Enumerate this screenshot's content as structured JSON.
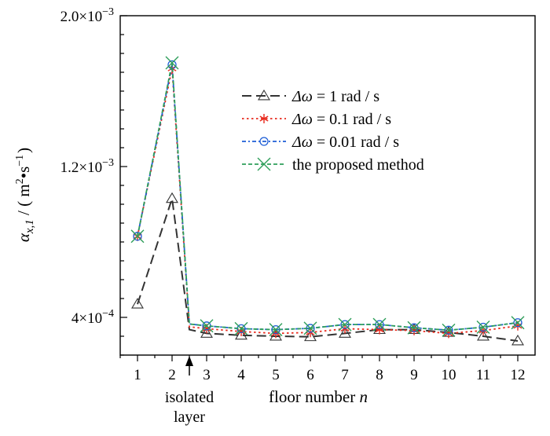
{
  "chart_data": {
    "type": "line",
    "x": [
      1,
      2,
      3,
      4,
      5,
      6,
      7,
      8,
      9,
      10,
      11,
      12
    ],
    "xlabel_parts": {
      "text": "floor number ",
      "var": "n"
    },
    "ylabel_parts": {
      "var": "α",
      "sub": "x,1",
      "rest": " / ( m",
      "sup1": "2",
      "dot": "•s",
      "sup2": "−1",
      "close": ")"
    },
    "xlim": [
      0.5,
      12.5
    ],
    "ylim": [
      0.0002,
      0.002
    ],
    "y_major_ticks": [
      {
        "value": 0.0004,
        "mant": "4×10",
        "exp": "−4"
      },
      {
        "value": 0.0012,
        "mant": "1.2×10",
        "exp": "−3"
      },
      {
        "value": 0.002,
        "mant": "2.0×10",
        "exp": "−3"
      }
    ],
    "y_minor_step": 0.0001,
    "x_tick_labels": [
      "1",
      "2",
      "3",
      "4",
      "5",
      "6",
      "7",
      "8",
      "9",
      "10",
      "11",
      "12"
    ],
    "annotation": {
      "lines": [
        "isolated",
        "layer"
      ],
      "x": 2.5
    },
    "legend": {
      "position": "top-right"
    },
    "series": [
      {
        "name_parts": {
          "var": "Δω",
          "rest": " = 1 rad / s"
        },
        "marker": "triangle",
        "color": "#333333",
        "dash": "dashed",
        "points": [
          [
            1,
            0.00047
          ],
          [
            2,
            0.00103
          ],
          [
            2.5,
            0.000335
          ],
          [
            3,
            0.000315
          ],
          [
            4,
            0.000305
          ],
          [
            5,
            0.0003
          ],
          [
            6,
            0.000297
          ],
          [
            7,
            0.000315
          ],
          [
            8,
            0.000335
          ],
          [
            9,
            0.000335
          ],
          [
            10,
            0.00032
          ],
          [
            11,
            0.0003
          ],
          [
            12,
            0.000275
          ]
        ]
      },
      {
        "name_parts": {
          "var": "Δω",
          "rest": " = 0.1 rad / s"
        },
        "marker": "asterisk",
        "color": "#e8291c",
        "dash": "dotted",
        "points": [
          [
            1,
            0.00083
          ],
          [
            2,
            0.00172
          ],
          [
            2.5,
            0.00035
          ],
          [
            3,
            0.00034
          ],
          [
            4,
            0.000325
          ],
          [
            5,
            0.000315
          ],
          [
            6,
            0.00032
          ],
          [
            7,
            0.00034
          ],
          [
            8,
            0.000335
          ],
          [
            9,
            0.00033
          ],
          [
            10,
            0.000315
          ],
          [
            11,
            0.00033
          ],
          [
            12,
            0.000355
          ]
        ]
      },
      {
        "name_parts": {
          "var": "Δω",
          "rest": " = 0.01 rad / s"
        },
        "marker": "circle",
        "color": "#1f5fd6",
        "dash": "dashdot",
        "points": [
          [
            1,
            0.00083
          ],
          [
            2,
            0.00174
          ],
          [
            2.5,
            0.000365
          ],
          [
            3,
            0.000355
          ],
          [
            4,
            0.00034
          ],
          [
            5,
            0.000335
          ],
          [
            6,
            0.000342
          ],
          [
            7,
            0.000362
          ],
          [
            8,
            0.000362
          ],
          [
            9,
            0.000345
          ],
          [
            10,
            0.000332
          ],
          [
            11,
            0.000348
          ],
          [
            12,
            0.000372
          ]
        ]
      },
      {
        "name_parts": {
          "var": "",
          "rest": "the proposed method"
        },
        "marker": "x",
        "color": "#2e9e5a",
        "dash": "shortdash",
        "points": [
          [
            1,
            0.00083
          ],
          [
            2,
            0.00175
          ],
          [
            2.5,
            0.000365
          ],
          [
            3,
            0.000355
          ],
          [
            4,
            0.00034
          ],
          [
            5,
            0.000335
          ],
          [
            6,
            0.000342
          ],
          [
            7,
            0.000362
          ],
          [
            8,
            0.000362
          ],
          [
            9,
            0.000345
          ],
          [
            10,
            0.000332
          ],
          [
            11,
            0.000348
          ],
          [
            12,
            0.000372
          ]
        ]
      }
    ]
  }
}
